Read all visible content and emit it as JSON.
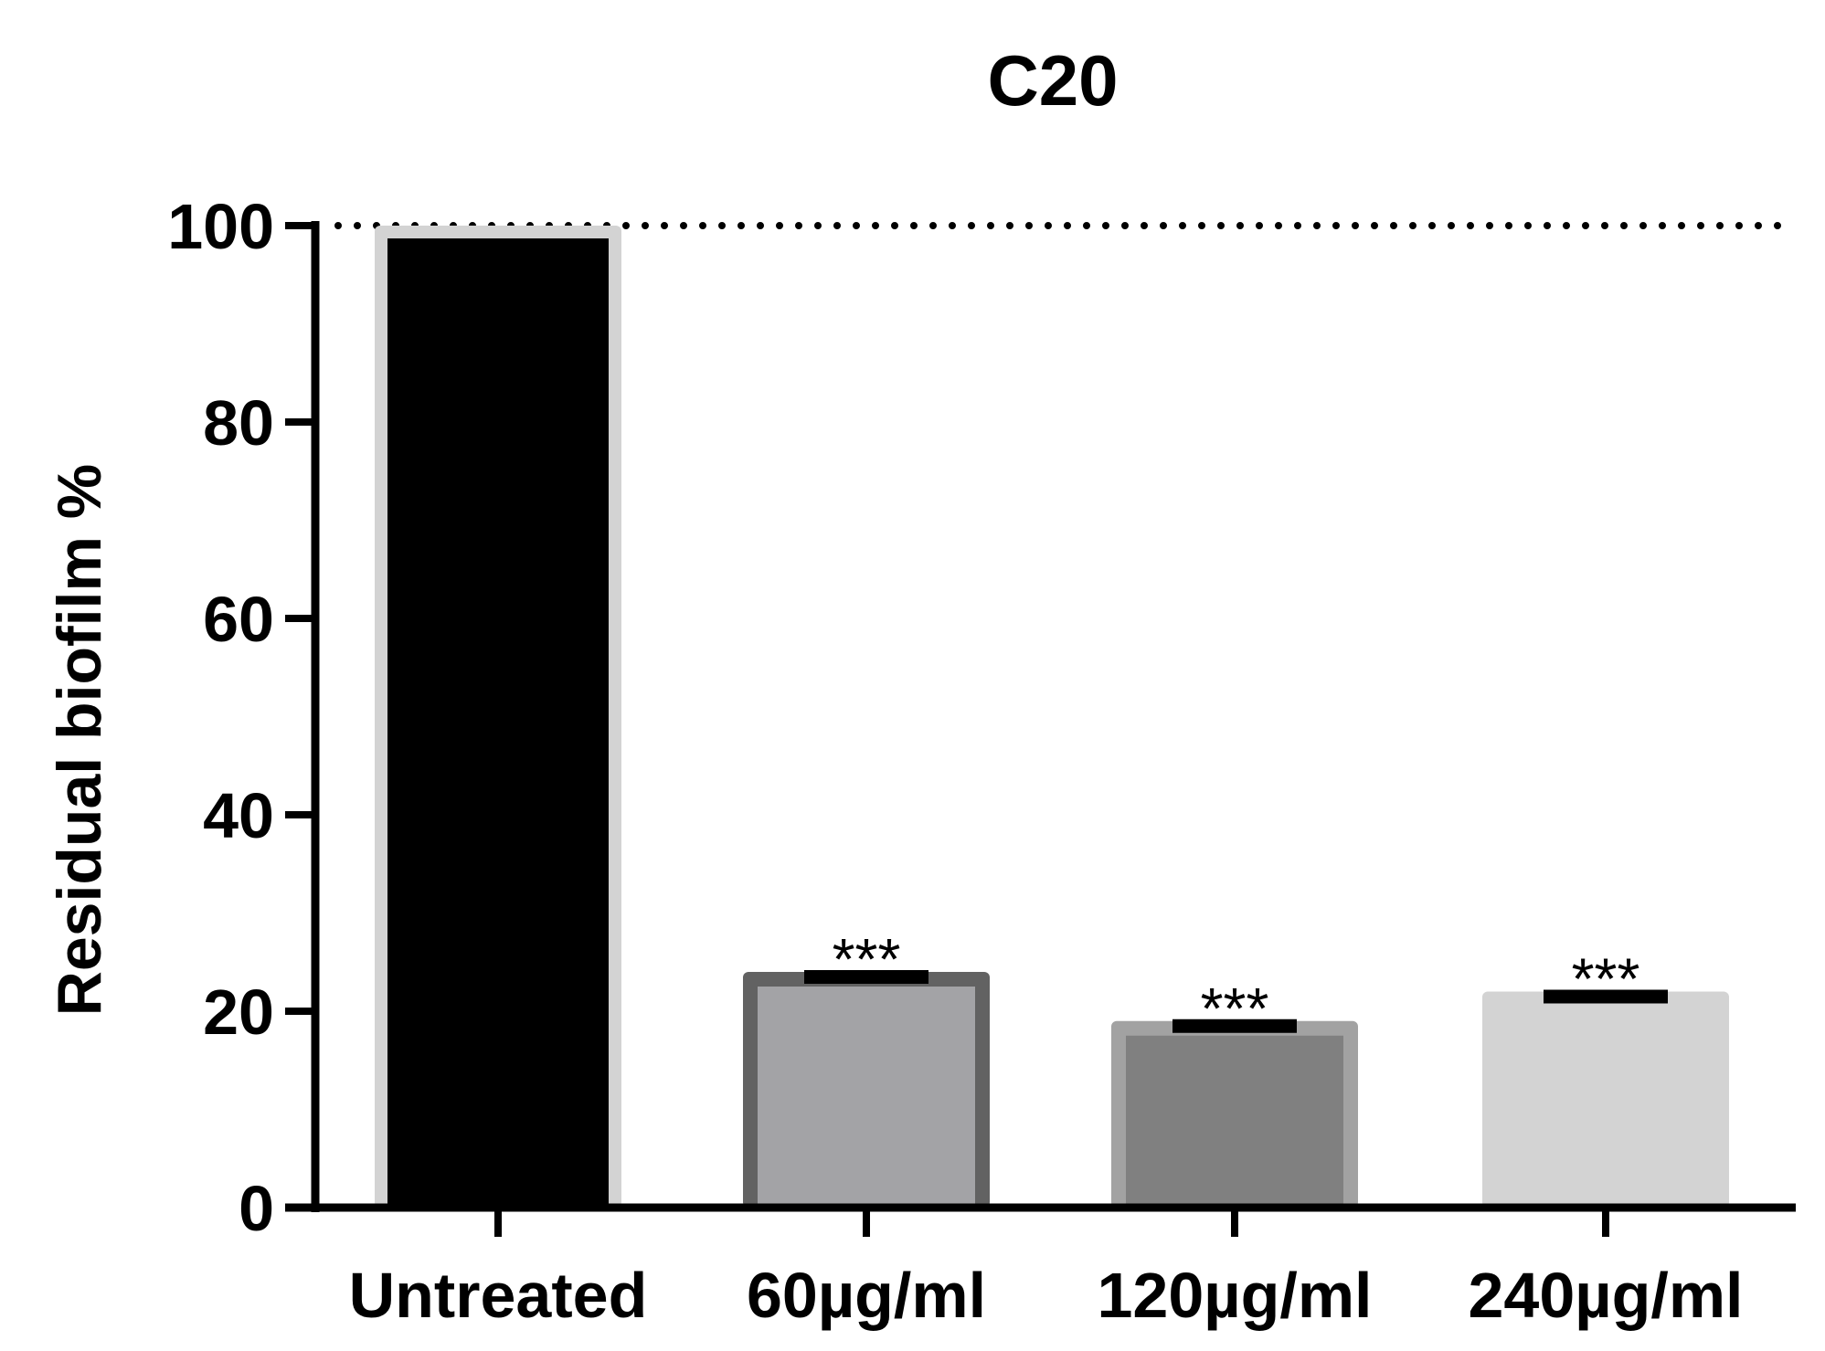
{
  "chart_data": {
    "type": "bar",
    "title": "C20",
    "xlabel": "",
    "ylabel": "Residual biofilm %",
    "ylim": [
      0,
      100
    ],
    "yticks": [
      "0",
      "20",
      "40",
      "60",
      "80",
      "100"
    ],
    "reference_line": {
      "value": 100,
      "style": "dotted"
    },
    "categories": [
      "Untreated",
      "60µg/ml",
      "120µg/ml",
      "240µg/ml"
    ],
    "values": [
      100,
      24,
      19,
      22
    ],
    "error": [
      0,
      0.5,
      0.5,
      0.5
    ],
    "significance": [
      "",
      "***",
      "***",
      "***"
    ],
    "fill_colors": [
      "#000000",
      "#a3a3a6",
      "#808080",
      "#d3d3d3"
    ],
    "edge_colors": [
      "#d3d3d3",
      "#626262",
      "#a2a2a2",
      "#d3d3d3"
    ]
  }
}
